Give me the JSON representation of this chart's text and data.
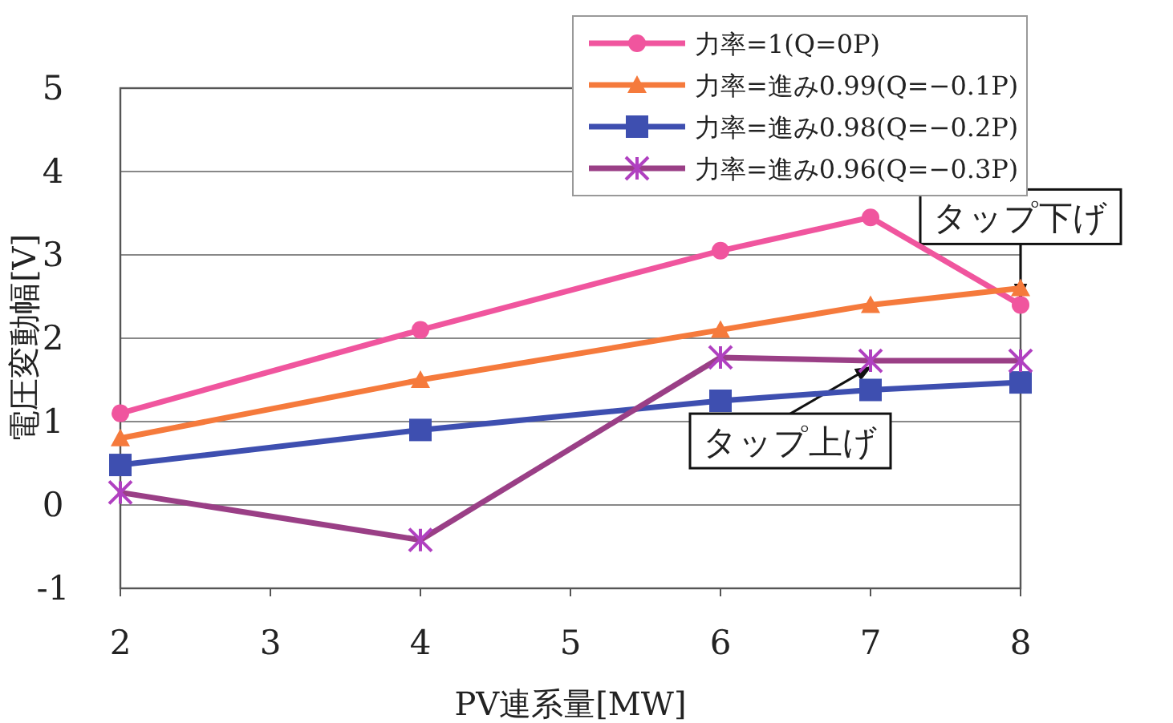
{
  "chart_data": {
    "type": "line",
    "xlabel": "PV連系量[MW]",
    "ylabel": "電圧変動幅[V]",
    "x": [
      2,
      4,
      6,
      7,
      8
    ],
    "xlim": [
      2,
      8
    ],
    "xticks": [
      2,
      3,
      4,
      5,
      6,
      7,
      8
    ],
    "ylim": [
      -1,
      5
    ],
    "yticks": [
      -1,
      0,
      1,
      2,
      3,
      4,
      5
    ],
    "grid": "y",
    "legend": "top right",
    "line_style": "solid",
    "series": [
      {
        "name": "力率=1(Q=0P)",
        "color": "#f0559e",
        "marker": "circle",
        "values": [
          1.1,
          2.1,
          3.05,
          3.45,
          2.4
        ]
      },
      {
        "name": "力率=進み0.99(Q=−0.1P)",
        "color": "#f57a3c",
        "marker": "triangle",
        "values": [
          0.8,
          1.5,
          2.1,
          2.4,
          2.6
        ]
      },
      {
        "name": "力率=進み0.98(Q=−0.2P)",
        "color": "#3e4fb0",
        "marker": "square",
        "values": [
          0.48,
          0.9,
          1.25,
          1.38,
          1.47
        ]
      },
      {
        "name": "力率=進み0.96(Q=−0.3P)",
        "color": "#9a3f86",
        "marker": "cross",
        "values": [
          0.15,
          -0.42,
          1.77,
          1.73,
          1.73
        ]
      }
    ],
    "annotations": [
      {
        "text": "タップ下げ",
        "x": 8,
        "y": 2.4
      },
      {
        "text": "タップ上げ",
        "x": 7,
        "y": 1.73
      }
    ]
  }
}
